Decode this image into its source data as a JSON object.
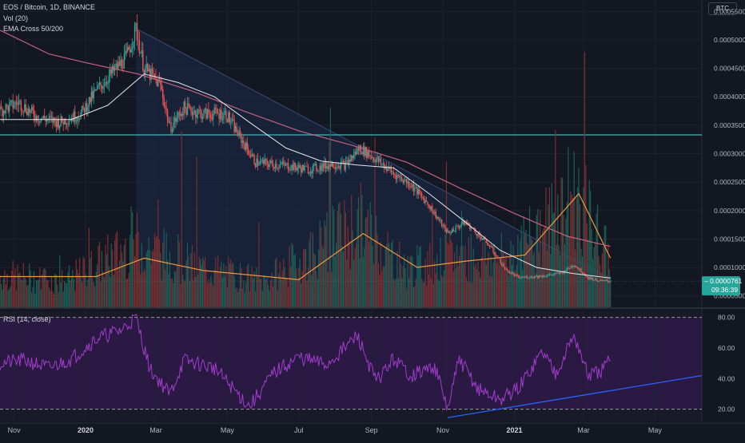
{
  "header": {
    "symbol": "EOS / Bitcoin, 1D, BINANCE",
    "vol_indicator": "Vol (20)",
    "ema_indicator": "EMA Cross 50/200",
    "rsi_indicator": "RSI (14, close)",
    "currency": "BTC"
  },
  "price_label": {
    "value": "0.0000761",
    "countdown": "09:36:39"
  },
  "colors": {
    "background": "#131722",
    "candle_up": "#26a69a",
    "candle_down": "#ef5350",
    "ema50": "#e6e6e6",
    "ema200": "#c2637f",
    "volume_ma": "#f2963a",
    "rsi_line": "#a23bcc",
    "rsi_band": "#2a1a43",
    "trendline": "#2962ff",
    "support_line": "#4fd3d5",
    "wedge_fill": "#1b2a4a"
  },
  "chart_data": [
    {
      "type": "candlestick",
      "title": "EOS / Bitcoin, 1D, BINANCE",
      "ylabel": "BTC",
      "ylim": [
        3e-05,
        0.00057
      ],
      "y_ticks": [
        "0.0005500",
        "0.0005000",
        "0.0004500",
        "0.0004000",
        "0.0003500",
        "0.0003000",
        "0.0002500",
        "0.0002000",
        "0.0001500",
        "0.0001000",
        "0.0000500"
      ],
      "x_ticks": [
        "Nov",
        "2020",
        "Mar",
        "May",
        "Jul",
        "Sep",
        "Nov",
        "2021",
        "Mar",
        "May"
      ],
      "x_range": [
        "2019-10-20",
        "2021-06-10"
      ],
      "last_date": "2021-03-24",
      "last_price": 7.61e-05,
      "price_path": [
        [
          "2019-10-20",
          0.000375
        ],
        [
          "2019-11-05",
          0.00039
        ],
        [
          "2019-11-20",
          0.000365
        ],
        [
          "2019-12-10",
          0.000355
        ],
        [
          "2019-12-28",
          0.00037
        ],
        [
          "2020-01-10",
          0.00041
        ],
        [
          "2020-01-25",
          0.000445
        ],
        [
          "2020-02-05",
          0.00047
        ],
        [
          "2020-02-13",
          0.00052
        ],
        [
          "2020-02-20",
          0.00045
        ],
        [
          "2020-03-05",
          0.00042
        ],
        [
          "2020-03-13",
          0.000345
        ],
        [
          "2020-03-25",
          0.00038
        ],
        [
          "2020-04-10",
          0.00037
        ],
        [
          "2020-04-30",
          0.00037
        ],
        [
          "2020-05-10",
          0.000335
        ],
        [
          "2020-05-25",
          0.000285
        ],
        [
          "2020-06-15",
          0.00028
        ],
        [
          "2020-07-10",
          0.000272
        ],
        [
          "2020-07-30",
          0.000282
        ],
        [
          "2020-08-10",
          0.00028
        ],
        [
          "2020-08-22",
          0.00031
        ],
        [
          "2020-09-05",
          0.00029
        ],
        [
          "2020-09-20",
          0.000265
        ],
        [
          "2020-10-05",
          0.000245
        ],
        [
          "2020-10-20",
          0.00021
        ],
        [
          "2020-11-05",
          0.00016
        ],
        [
          "2020-11-20",
          0.00018
        ],
        [
          "2020-12-10",
          0.00014
        ],
        [
          "2020-12-25",
          9.5e-05
        ],
        [
          "2021-01-05",
          8.2e-05
        ],
        [
          "2021-01-25",
          8.5e-05
        ],
        [
          "2021-02-10",
          9e-05
        ],
        [
          "2021-02-21",
          0.000105
        ],
        [
          "2021-03-05",
          8.2e-05
        ],
        [
          "2021-03-15",
          7.6e-05
        ],
        [
          "2021-03-24",
          7.61e-05
        ]
      ],
      "ema50": [
        [
          "2019-10-20",
          0.00036
        ],
        [
          "2019-12-20",
          0.00036
        ],
        [
          "2020-01-20",
          0.000385
        ],
        [
          "2020-02-20",
          0.00044
        ],
        [
          "2020-03-20",
          0.000425
        ],
        [
          "2020-04-20",
          0.0004
        ],
        [
          "2020-05-20",
          0.000355
        ],
        [
          "2020-06-20",
          0.00031
        ],
        [
          "2020-07-20",
          0.000287
        ],
        [
          "2020-08-20",
          0.00028
        ],
        [
          "2020-09-20",
          0.000275
        ],
        [
          "2020-10-20",
          0.00023
        ],
        [
          "2020-11-20",
          0.00018
        ],
        [
          "2020-12-20",
          0.00013
        ],
        [
          "2021-01-20",
          0.0001
        ],
        [
          "2021-02-20",
          8.95e-05
        ],
        [
          "2021-03-24",
          8.15e-05
        ]
      ],
      "ema200": [
        [
          "2019-10-20",
          0.000517
        ],
        [
          "2019-12-01",
          0.000475
        ],
        [
          "2020-01-01",
          0.00046
        ],
        [
          "2020-02-15",
          0.00044
        ],
        [
          "2020-04-01",
          0.00041
        ],
        [
          "2020-05-15",
          0.000375
        ],
        [
          "2020-07-01",
          0.00034
        ],
        [
          "2020-08-15",
          0.000315
        ],
        [
          "2020-10-01",
          0.000285
        ],
        [
          "2020-11-15",
          0.00024
        ],
        [
          "2021-01-01",
          0.000195
        ],
        [
          "2021-02-15",
          0.000155
        ],
        [
          "2021-03-24",
          0.000137
        ]
      ],
      "support_level": 0.000333,
      "wedge_upper": [
        [
          "2020-02-13",
          0.00052
        ],
        [
          "2021-03-24",
          8.05e-05
        ]
      ],
      "wedge_lower_start": [
        "2020-02-13",
        3e-05
      ]
    },
    {
      "type": "line",
      "title": "RSI (14, close)",
      "ylim": [
        12,
        84
      ],
      "y_ticks": [
        80,
        60,
        40,
        20
      ],
      "levels": [
        80,
        20
      ],
      "x_range": [
        "2019-10-20",
        "2021-06-10"
      ],
      "rsi_path": [
        [
          "2019-10-20",
          50
        ],
        [
          "2019-11-10",
          52
        ],
        [
          "2019-12-01",
          47
        ],
        [
          "2019-12-20",
          53
        ],
        [
          "2020-01-10",
          66
        ],
        [
          "2020-02-01",
          72
        ],
        [
          "2020-02-13",
          80
        ],
        [
          "2020-02-25",
          46
        ],
        [
          "2020-03-13",
          30
        ],
        [
          "2020-03-25",
          52
        ],
        [
          "2020-04-20",
          47
        ],
        [
          "2020-05-10",
          30
        ],
        [
          "2020-05-20",
          22
        ],
        [
          "2020-06-10",
          44
        ],
        [
          "2020-07-01",
          54
        ],
        [
          "2020-07-25",
          49
        ],
        [
          "2020-08-20",
          68
        ],
        [
          "2020-09-05",
          38
        ],
        [
          "2020-09-20",
          53
        ],
        [
          "2020-10-05",
          42
        ],
        [
          "2020-10-25",
          48
        ],
        [
          "2020-11-05",
          20
        ],
        [
          "2020-11-15",
          53
        ],
        [
          "2020-12-01",
          33
        ],
        [
          "2020-12-20",
          26
        ],
        [
          "2021-01-05",
          34
        ],
        [
          "2021-01-25",
          58
        ],
        [
          "2021-02-05",
          44
        ],
        [
          "2021-02-21",
          68
        ],
        [
          "2021-03-05",
          42
        ],
        [
          "2021-03-15",
          44
        ],
        [
          "2021-03-24",
          52
        ]
      ],
      "trendline": [
        [
          "2020-11-05",
          14.5
        ],
        [
          "2021-06-10",
          42
        ]
      ]
    },
    {
      "type": "bar",
      "title": "Vol (20)",
      "ylim": [
        0,
        10
      ],
      "x_range": [
        "2019-10-20",
        "2021-06-10"
      ],
      "volume_path": [
        [
          "2019-10-20",
          1.0
        ],
        [
          "2019-12-15",
          0.8
        ],
        [
          "2020-02-13",
          2.0
        ],
        [
          "2020-04-01",
          1.3
        ],
        [
          "2020-06-01",
          0.8
        ],
        [
          "2020-08-22",
          2.6
        ],
        [
          "2020-10-01",
          1.2
        ],
        [
          "2020-11-15",
          1.6
        ],
        [
          "2020-12-20",
          1.5
        ],
        [
          "2021-01-20",
          2.2
        ],
        [
          "2021-02-21",
          3.6
        ],
        [
          "2021-03-24",
          1.4
        ]
      ],
      "volume_ma": [
        [
          "2019-10-20",
          1.0
        ],
        [
          "2020-01-10",
          1.0
        ],
        [
          "2020-02-20",
          1.6
        ],
        [
          "2020-04-10",
          1.2
        ],
        [
          "2020-07-01",
          0.9
        ],
        [
          "2020-08-25",
          2.4
        ],
        [
          "2020-10-10",
          1.3
        ],
        [
          "2020-11-20",
          1.5
        ],
        [
          "2021-01-10",
          1.7
        ],
        [
          "2021-02-25",
          3.7
        ],
        [
          "2021-03-24",
          1.6
        ]
      ]
    }
  ]
}
